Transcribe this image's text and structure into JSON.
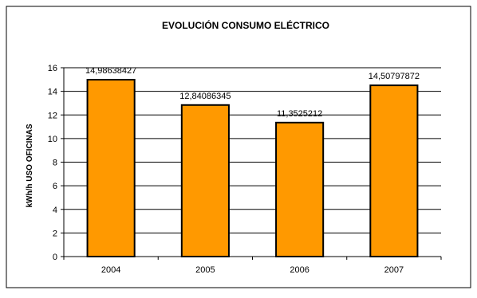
{
  "chart_data": {
    "type": "bar",
    "title": "EVOLUCIÓN CONSUMO ELÉCTRICO",
    "xlabel": "",
    "ylabel": "kWh/h USO OFICINAS",
    "categories": [
      "2004",
      "2005",
      "2006",
      "2007"
    ],
    "values": [
      14.98638427,
      12.84086345,
      11.3525212,
      14.50797872
    ],
    "data_labels": [
      "14,98638427",
      "12,84086345",
      "11,3525212",
      "14,50797872"
    ],
    "ylim": [
      0,
      16
    ],
    "yticks": [
      0,
      2,
      4,
      6,
      8,
      10,
      12,
      14,
      16
    ],
    "grid": true,
    "legend": "none",
    "colors": {
      "bar": "#FF9900",
      "bar_edge": "#000000",
      "grid": "#000000",
      "frame": "#000000"
    }
  }
}
